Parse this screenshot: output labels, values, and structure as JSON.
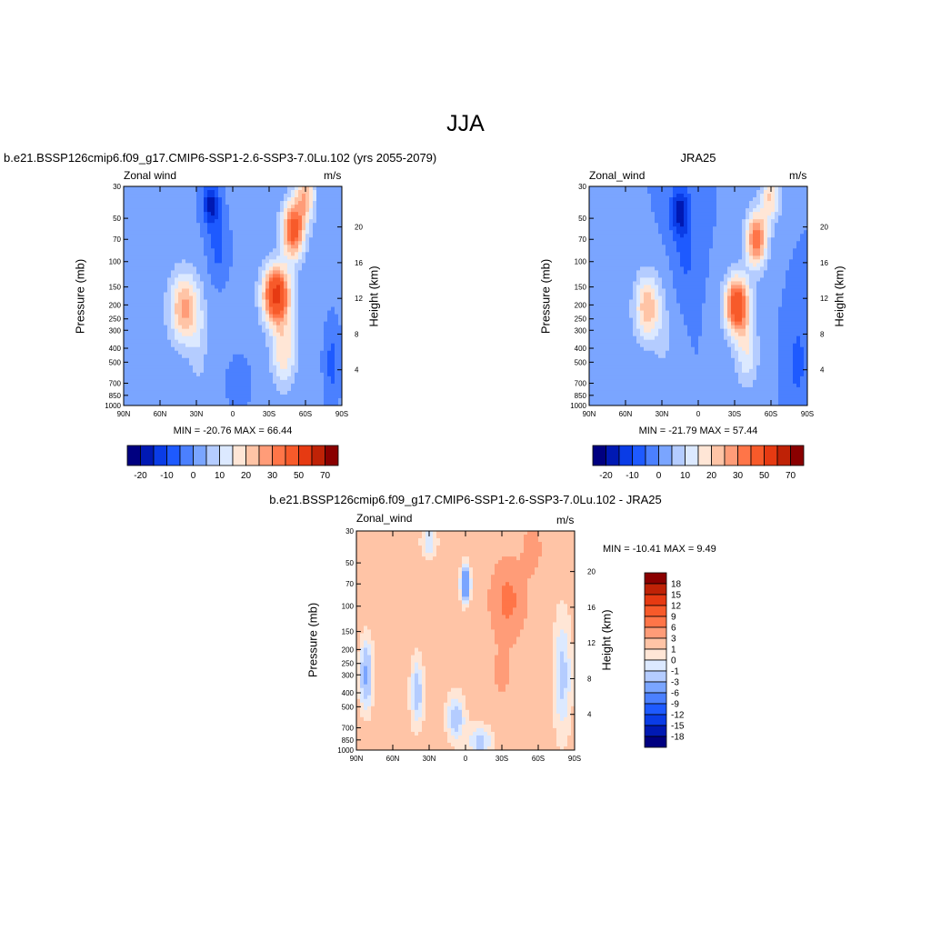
{
  "figure": {
    "title": "JJA"
  },
  "colors": {
    "abs_levels": [
      "#000080",
      "#0019b3",
      "#0a3ce6",
      "#1e5aff",
      "#4b80ff",
      "#7aa5ff",
      "#b4ccff",
      "#dce9ff",
      "#ffe6d6",
      "#ffc4a6",
      "#ff9c78",
      "#ff7548",
      "#f75a2a",
      "#e63a12",
      "#bf2206",
      "#8a0000"
    ],
    "diff_levels": [
      "#000080",
      "#0019b3",
      "#0a3ce6",
      "#1e5aff",
      "#4b80ff",
      "#7aa5ff",
      "#b4ccff",
      "#dce9ff",
      "#ffe6d6",
      "#ffc4a6",
      "#ff9c78",
      "#ff7548",
      "#f75a2a",
      "#e63a12",
      "#bf2206",
      "#8a0000"
    ]
  },
  "chart_data": [
    {
      "type": "heatmap",
      "title": "b.e21.BSSP126cmip6.f09_g17.CMIP6-SSP1-2.6-SSP3-7.0Lu.102 (yrs 2055-2079)",
      "left_label": "Zonal wind",
      "right_label": "m/s",
      "ylabel": "Pressure (mb)",
      "y2label": "Height (km)",
      "x_ticks": [
        "90N",
        "60N",
        "30N",
        "0",
        "30S",
        "60S",
        "90S"
      ],
      "y_ticks": [
        30,
        50,
        70,
        100,
        150,
        200,
        250,
        300,
        400,
        500,
        700,
        850,
        1000
      ],
      "y2_ticks": [
        4,
        8,
        12,
        16,
        20
      ],
      "ylim": [
        1000,
        30
      ],
      "stats": "MIN = -20.76  MAX =  66.44",
      "field": {
        "background": -4,
        "features": [
          {
            "lat": 40,
            "p": 210,
            "lat_w": 12,
            "p_w": 0.55,
            "amp": 26
          },
          {
            "lat": 28,
            "p": 380,
            "lat_w": 8,
            "p_w": 0.7,
            "amp": 6
          },
          {
            "lat": 18,
            "p": 40,
            "lat_w": 7,
            "p_w": 0.35,
            "amp": -18
          },
          {
            "lat": 12,
            "p": 80,
            "lat_w": 8,
            "p_w": 0.5,
            "amp": -8
          },
          {
            "lat": -36,
            "p": 170,
            "lat_w": 11,
            "p_w": 0.45,
            "amp": 48
          },
          {
            "lat": -50,
            "p": 60,
            "lat_w": 9,
            "p_w": 0.45,
            "amp": 38
          },
          {
            "lat": -42,
            "p": 420,
            "lat_w": 10,
            "p_w": 0.55,
            "amp": 18
          },
          {
            "lat": -60,
            "p": 35,
            "lat_w": 8,
            "p_w": 0.4,
            "amp": 22
          },
          {
            "lat": -5,
            "p": 700,
            "lat_w": 8,
            "p_w": 0.35,
            "amp": -6
          },
          {
            "lat": -82,
            "p": 500,
            "lat_w": 6,
            "p_w": 0.6,
            "amp": -8
          }
        ]
      },
      "colorbar": {
        "type": "horizontal",
        "labels": [
          "-20",
          "-10",
          "0",
          "10",
          "20",
          "30",
          "50",
          "70"
        ]
      }
    },
    {
      "type": "heatmap",
      "title": "JRA25",
      "left_label": "Zonal_wind",
      "right_label": "m/s",
      "ylabel": "Pressure (mb)",
      "y2label": "Height (km)",
      "x_ticks": [
        "90N",
        "60N",
        "30N",
        "0",
        "30S",
        "60S",
        "90S"
      ],
      "y_ticks": [
        30,
        50,
        70,
        100,
        150,
        200,
        250,
        300,
        400,
        500,
        700,
        850,
        1000
      ],
      "y2_ticks": [
        4,
        8,
        12,
        16,
        20
      ],
      "ylim": [
        1000,
        30
      ],
      "stats": "MIN = -21.79  MAX =  57.44",
      "field": {
        "background": -5,
        "features": [
          {
            "lat": 42,
            "p": 210,
            "lat_w": 11,
            "p_w": 0.55,
            "amp": 24
          },
          {
            "lat": 28,
            "p": 380,
            "lat_w": 8,
            "p_w": 0.7,
            "amp": 5
          },
          {
            "lat": 15,
            "p": 45,
            "lat_w": 8,
            "p_w": 0.4,
            "amp": -18
          },
          {
            "lat": 10,
            "p": 90,
            "lat_w": 8,
            "p_w": 0.5,
            "amp": -7
          },
          {
            "lat": -32,
            "p": 200,
            "lat_w": 10,
            "p_w": 0.45,
            "amp": 44
          },
          {
            "lat": -48,
            "p": 70,
            "lat_w": 9,
            "p_w": 0.45,
            "amp": 34
          },
          {
            "lat": -40,
            "p": 430,
            "lat_w": 10,
            "p_w": 0.55,
            "amp": 14
          },
          {
            "lat": -60,
            "p": 35,
            "lat_w": 8,
            "p_w": 0.4,
            "amp": 20
          },
          {
            "lat": -82,
            "p": 500,
            "lat_w": 6,
            "p_w": 0.6,
            "amp": -8
          }
        ]
      },
      "colorbar": {
        "type": "horizontal",
        "labels": [
          "-20",
          "-10",
          "0",
          "10",
          "20",
          "30",
          "50",
          "70"
        ]
      }
    },
    {
      "type": "heatmap",
      "title": "b.e21.BSSP126cmip6.f09_g17.CMIP6-SSP1-2.6-SSP3-7.0Lu.102 - JRA25",
      "left_label": "Zonal_wind",
      "right_label": "m/s",
      "ylabel": "Pressure (mb)",
      "y2label": "Height (km)",
      "x_ticks": [
        "90N",
        "60N",
        "30N",
        "0",
        "30S",
        "60S",
        "90S"
      ],
      "y_ticks": [
        30,
        50,
        70,
        100,
        150,
        200,
        250,
        300,
        400,
        500,
        700,
        850,
        1000
      ],
      "y2_ticks": [
        4,
        8,
        12,
        16,
        20
      ],
      "ylim": [
        1000,
        30
      ],
      "stats": "MIN = -10.41  MAX =   9.49",
      "field": {
        "background": 1.5,
        "features": [
          {
            "lat": -35,
            "p": 90,
            "lat_w": 14,
            "p_w": 0.6,
            "amp": 5.5
          },
          {
            "lat": -55,
            "p": 40,
            "lat_w": 8,
            "p_w": 0.4,
            "amp": 3
          },
          {
            "lat": -30,
            "p": 300,
            "lat_w": 10,
            "p_w": 0.5,
            "amp": 2
          },
          {
            "lat": 0,
            "p": 70,
            "lat_w": 3.5,
            "p_w": 0.25,
            "amp": -9
          },
          {
            "lat": 30,
            "p": 35,
            "lat_w": 6,
            "p_w": 0.25,
            "amp": -2.5
          },
          {
            "lat": 82,
            "p": 300,
            "lat_w": 5,
            "p_w": 0.5,
            "amp": -5
          },
          {
            "lat": 40,
            "p": 400,
            "lat_w": 5,
            "p_w": 0.5,
            "amp": -3.5
          },
          {
            "lat": 8,
            "p": 600,
            "lat_w": 7,
            "p_w": 0.35,
            "amp": -3.5
          },
          {
            "lat": -80,
            "p": 300,
            "lat_w": 7,
            "p_w": 0.9,
            "amp": -3
          },
          {
            "lat": -12,
            "p": 880,
            "lat_w": 10,
            "p_w": 0.25,
            "amp": -3
          }
        ]
      },
      "colorbar": {
        "type": "vertical",
        "labels": [
          "18",
          "15",
          "12",
          "9",
          "6",
          "3",
          "1",
          "0",
          "-1",
          "-3",
          "-6",
          "-9",
          "-12",
          "-15",
          "-18"
        ]
      }
    }
  ]
}
